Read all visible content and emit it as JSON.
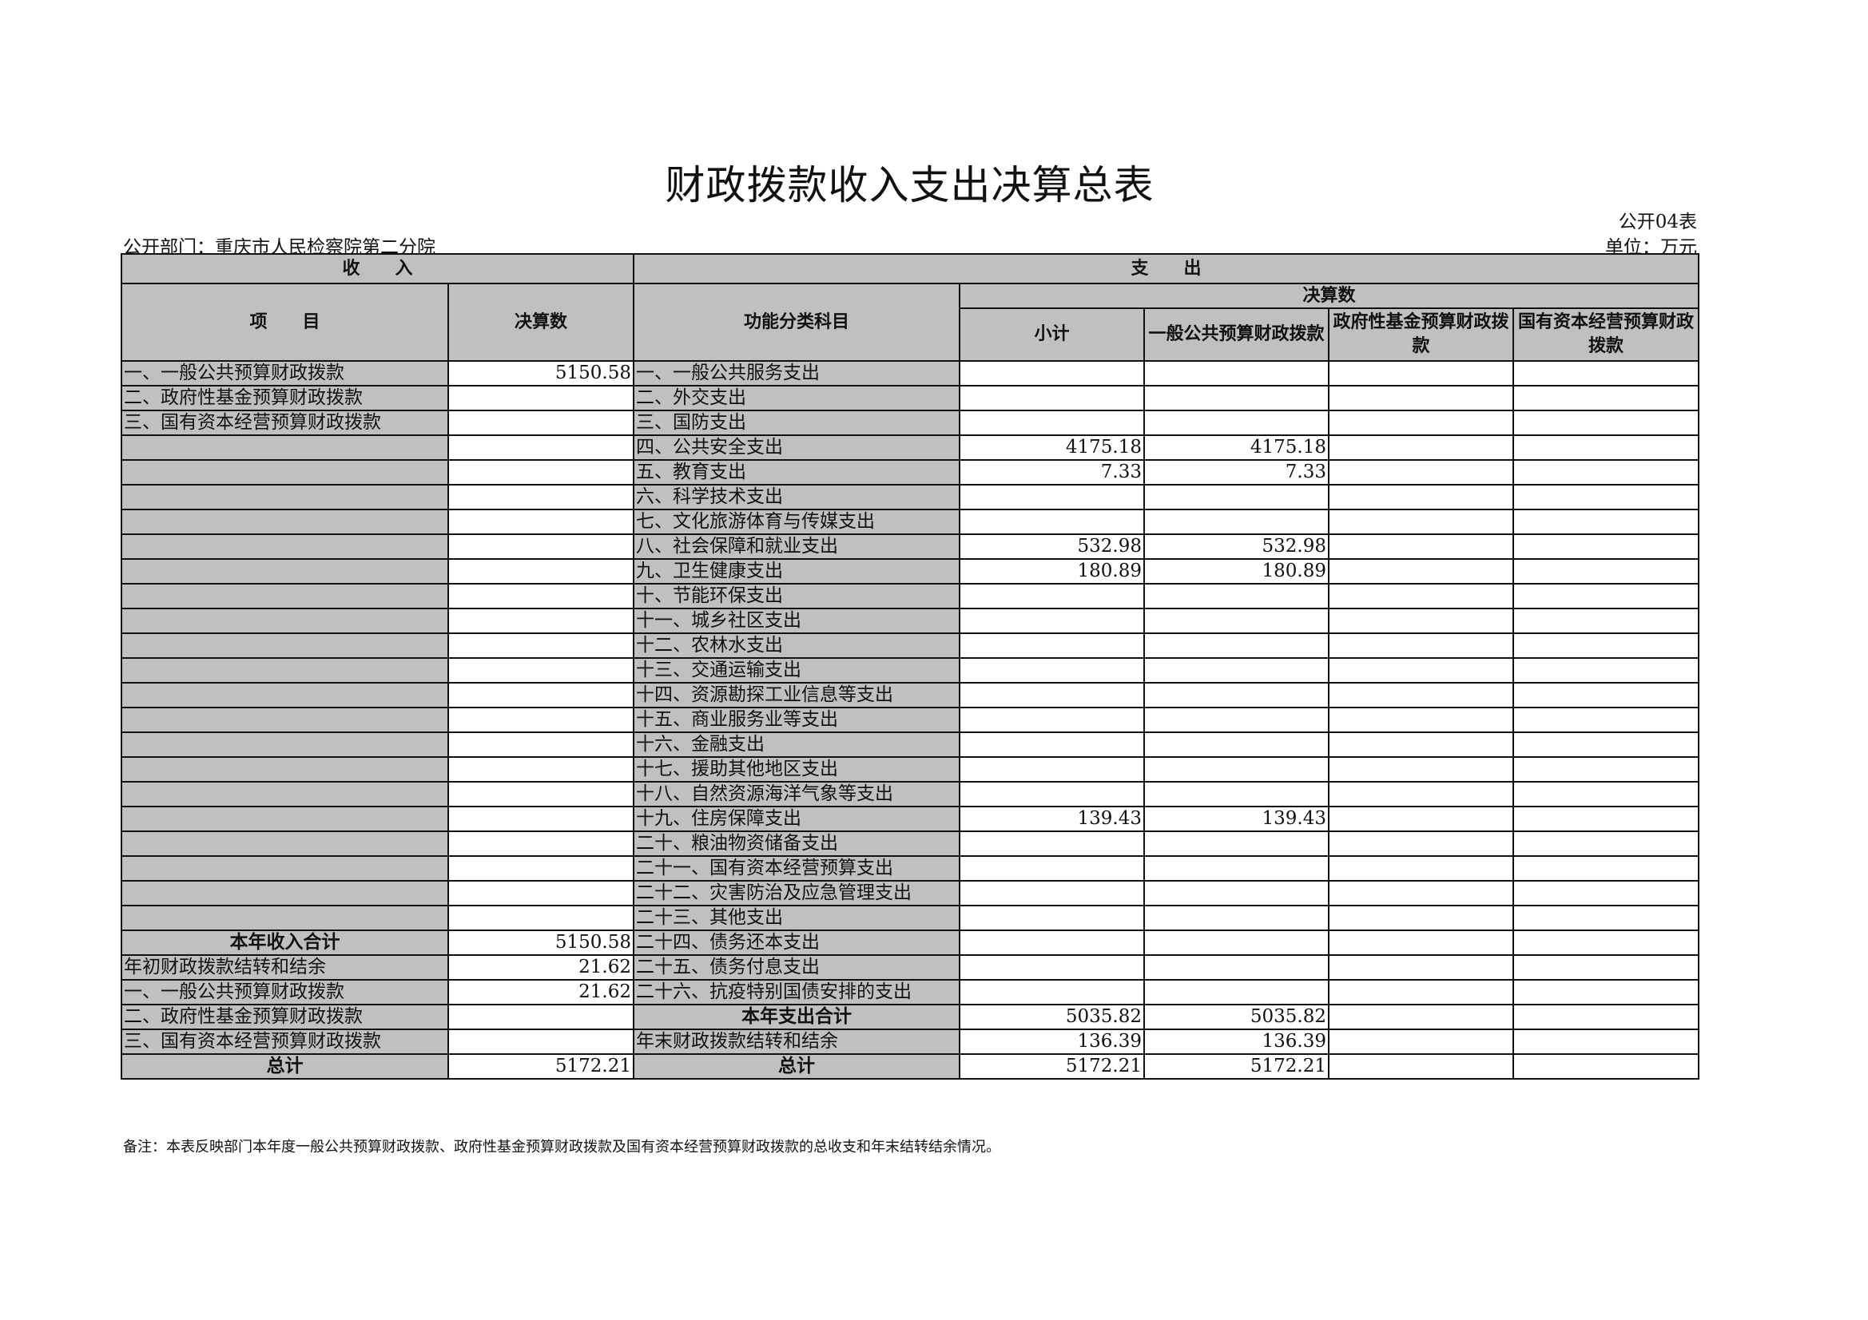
{
  "title": "财政拨款收入支出决算总表",
  "form_no": "公开04表",
  "department": "公开部门：重庆市人民检察院第二分院",
  "unit": "单位：万元",
  "header": {
    "income": "收　　入",
    "expense": "支　　出",
    "item": "项　　目",
    "amount": "决算数",
    "function": "功能分类科目",
    "final_amount": "决算数",
    "subtotal": "小计",
    "general": "一般公共预算财政拨款",
    "fund": "政府性基金预算财政拨款",
    "state": "国有资本经营预算财政拨款"
  },
  "rows": [
    {
      "inc": "一、一般公共预算财政拨款",
      "inc_v": "5150.58",
      "exp": "一、一般公共服务支出",
      "sub": "",
      "gen": "",
      "fund": "",
      "state": ""
    },
    {
      "inc": "二、政府性基金预算财政拨款",
      "inc_v": "",
      "exp": "二、外交支出",
      "sub": "",
      "gen": "",
      "fund": "",
      "state": ""
    },
    {
      "inc": "三、国有资本经营预算财政拨款",
      "inc_v": "",
      "exp": "三、国防支出",
      "sub": "",
      "gen": "",
      "fund": "",
      "state": ""
    },
    {
      "inc": "",
      "inc_v": "",
      "exp": "四、公共安全支出",
      "sub": "4175.18",
      "gen": "4175.18",
      "fund": "",
      "state": ""
    },
    {
      "inc": "",
      "inc_v": "",
      "exp": "五、教育支出",
      "sub": "7.33",
      "gen": "7.33",
      "fund": "",
      "state": ""
    },
    {
      "inc": "",
      "inc_v": "",
      "exp": "六、科学技术支出",
      "sub": "",
      "gen": "",
      "fund": "",
      "state": ""
    },
    {
      "inc": "",
      "inc_v": "",
      "exp": "七、文化旅游体育与传媒支出",
      "sub": "",
      "gen": "",
      "fund": "",
      "state": ""
    },
    {
      "inc": "",
      "inc_v": "",
      "exp": "八、社会保障和就业支出",
      "sub": "532.98",
      "gen": "532.98",
      "fund": "",
      "state": ""
    },
    {
      "inc": "",
      "inc_v": "",
      "exp": "九、卫生健康支出",
      "sub": "180.89",
      "gen": "180.89",
      "fund": "",
      "state": ""
    },
    {
      "inc": "",
      "inc_v": "",
      "exp": "十、节能环保支出",
      "sub": "",
      "gen": "",
      "fund": "",
      "state": ""
    },
    {
      "inc": "",
      "inc_v": "",
      "exp": "十一、城乡社区支出",
      "sub": "",
      "gen": "",
      "fund": "",
      "state": ""
    },
    {
      "inc": "",
      "inc_v": "",
      "exp": "十二、农林水支出",
      "sub": "",
      "gen": "",
      "fund": "",
      "state": ""
    },
    {
      "inc": "",
      "inc_v": "",
      "exp": "十三、交通运输支出",
      "sub": "",
      "gen": "",
      "fund": "",
      "state": ""
    },
    {
      "inc": "",
      "inc_v": "",
      "exp": "十四、资源勘探工业信息等支出",
      "sub": "",
      "gen": "",
      "fund": "",
      "state": ""
    },
    {
      "inc": "",
      "inc_v": "",
      "exp": "十五、商业服务业等支出",
      "sub": "",
      "gen": "",
      "fund": "",
      "state": ""
    },
    {
      "inc": "",
      "inc_v": "",
      "exp": "十六、金融支出",
      "sub": "",
      "gen": "",
      "fund": "",
      "state": ""
    },
    {
      "inc": "",
      "inc_v": "",
      "exp": "十七、援助其他地区支出",
      "sub": "",
      "gen": "",
      "fund": "",
      "state": ""
    },
    {
      "inc": "",
      "inc_v": "",
      "exp": "十八、自然资源海洋气象等支出",
      "sub": "",
      "gen": "",
      "fund": "",
      "state": ""
    },
    {
      "inc": "",
      "inc_v": "",
      "exp": "十九、住房保障支出",
      "sub": "139.43",
      "gen": "139.43",
      "fund": "",
      "state": ""
    },
    {
      "inc": "",
      "inc_v": "",
      "exp": "二十、粮油物资储备支出",
      "sub": "",
      "gen": "",
      "fund": "",
      "state": ""
    },
    {
      "inc": "",
      "inc_v": "",
      "exp": "二十一、国有资本经营预算支出",
      "sub": "",
      "gen": "",
      "fund": "",
      "state": ""
    },
    {
      "inc": "",
      "inc_v": "",
      "exp": "二十二、灾害防治及应急管理支出",
      "sub": "",
      "gen": "",
      "fund": "",
      "state": ""
    },
    {
      "inc": "",
      "inc_v": "",
      "exp": "二十三、其他支出",
      "sub": "",
      "gen": "",
      "fund": "",
      "state": ""
    },
    {
      "inc": "本年收入合计",
      "inc_v": "5150.58",
      "exp": "二十四、债务还本支出",
      "sub": "",
      "gen": "",
      "fund": "",
      "state": "",
      "inc_bold": true
    },
    {
      "inc": "年初财政拨款结转和结余",
      "inc_v": "21.62",
      "exp": "二十五、债务付息支出",
      "sub": "",
      "gen": "",
      "fund": "",
      "state": ""
    },
    {
      "inc": "一、一般公共预算财政拨款",
      "inc_v": "21.62",
      "exp": "二十六、抗疫特别国债安排的支出",
      "sub": "",
      "gen": "",
      "fund": "",
      "state": ""
    },
    {
      "inc": "二、政府性基金预算财政拨款",
      "inc_v": "",
      "exp": "本年支出合计",
      "sub": "5035.82",
      "gen": "5035.82",
      "fund": "",
      "state": "",
      "exp_bold": true
    },
    {
      "inc": "三、国有资本经营预算财政拨款",
      "inc_v": "",
      "exp": "年末财政拨款结转和结余",
      "sub": "136.39",
      "gen": "136.39",
      "fund": "",
      "state": ""
    },
    {
      "inc": "总计",
      "inc_v": "5172.21",
      "exp": "总计",
      "sub": "5172.21",
      "gen": "5172.21",
      "fund": "",
      "state": "",
      "inc_bold": true,
      "exp_bold": true
    }
  ],
  "note": "备注：本表反映部门本年度一般公共预算财政拨款、政府性基金预算财政拨款及国有资本经营预算财政拨款的总收支和年末结转结余情况。"
}
